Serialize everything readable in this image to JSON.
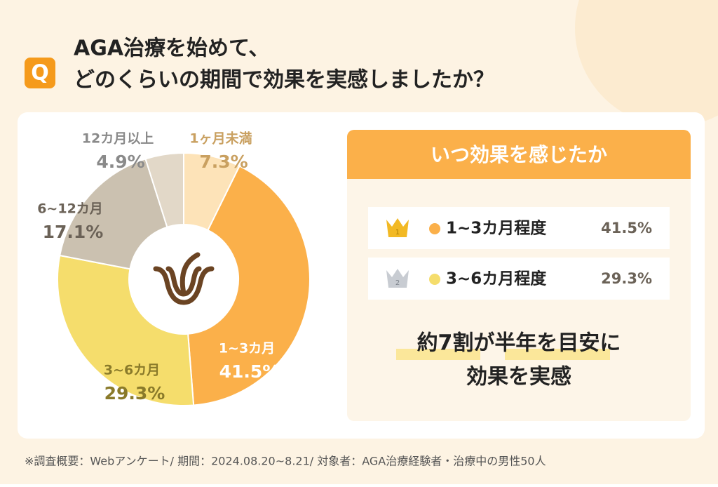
{
  "header": {
    "icon": "Q",
    "title_lines": [
      "AGA治療を始めて、",
      "どのくらいの期間で効果を実感しましたか？"
    ]
  },
  "chart_data": {
    "type": "donut",
    "categories": [
      "1ヶ月未満",
      "1~3カ月",
      "3~6カ月",
      "6~12カ月",
      "12カ月以上"
    ],
    "values": [
      7.3,
      41.5,
      29.3,
      17.1,
      4.9
    ],
    "value_labels": [
      "7.3%",
      "41.5%",
      "29.3%",
      "17.1%",
      "4.9%"
    ],
    "colors": [
      "#fde3b8",
      "#fbb04a",
      "#f5dd6c",
      "#cbc1b0",
      "#e2d8c8"
    ]
  },
  "panel": {
    "title": "いつ効果を感じたか",
    "ranking": [
      {
        "rank": "1",
        "label": "1~3カ月程度",
        "value": "41.5%"
      },
      {
        "rank": "2",
        "label": "3~6カ月程度",
        "value": "29.3%"
      }
    ],
    "summary_lines": [
      "約7割が半年を目安に",
      "効果を実感"
    ]
  },
  "footnote": "※調査概要：Webアンケート/ 期間：2024.08.20~8.21/ 対象者：AGA治療経験者・治療中の男性50人"
}
